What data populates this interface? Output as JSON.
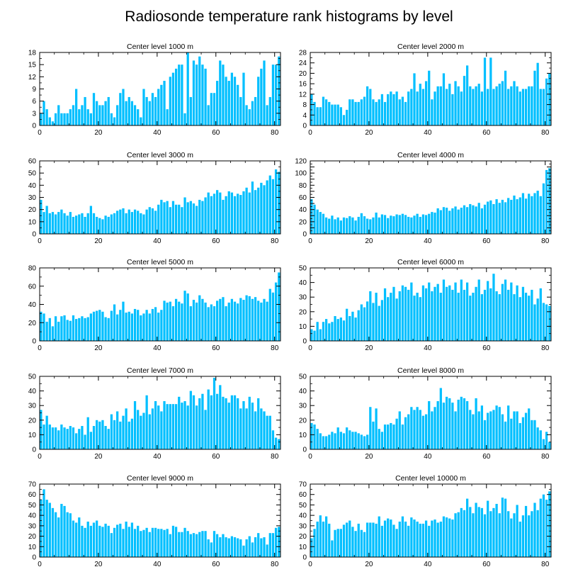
{
  "figure": {
    "title": "Radiosonde temperature rank histograms by level"
  },
  "chart_data": [
    {
      "type": "bar",
      "title": "Center level 1000 m",
      "ylim": [
        0,
        18
      ],
      "yticks": [
        0,
        3,
        6,
        9,
        12,
        15,
        18
      ],
      "xticks": [
        0,
        20,
        40,
        60,
        80
      ],
      "xlim": [
        0,
        82
      ],
      "values": [
        3,
        6,
        4,
        2,
        1,
        3,
        5,
        3,
        3,
        3,
        4,
        5,
        9,
        4,
        5,
        7,
        4,
        3,
        8,
        6,
        5,
        5,
        6,
        7,
        3,
        2,
        5,
        8,
        9,
        6,
        7,
        6,
        5,
        4,
        2,
        9,
        7,
        6,
        8,
        7,
        9,
        10,
        11,
        4,
        12,
        13,
        14,
        15,
        15,
        3,
        18,
        7,
        16,
        15,
        17,
        15,
        14,
        5,
        8,
        8,
        11,
        16,
        15,
        12,
        11,
        13,
        12,
        10,
        7,
        13,
        5,
        4,
        6,
        7,
        12,
        14,
        16,
        5,
        7,
        15,
        15,
        17
      ]
    },
    {
      "type": "bar",
      "title": "Center level 2000 m",
      "ylim": [
        0,
        28
      ],
      "yticks": [
        0,
        4,
        8,
        12,
        16,
        20,
        24,
        28
      ],
      "xticks": [
        0,
        20,
        40,
        60,
        80
      ],
      "xlim": [
        0,
        82
      ],
      "values": [
        12,
        9,
        7,
        7,
        11,
        10,
        9,
        8,
        8,
        8,
        7,
        4,
        6,
        10,
        10,
        9,
        9,
        10,
        11,
        15,
        14,
        10,
        9,
        10,
        12,
        9,
        12,
        13,
        12,
        13,
        10,
        11,
        9,
        13,
        14,
        20,
        13,
        16,
        14,
        17,
        21,
        10,
        13,
        15,
        15,
        20,
        14,
        16,
        12,
        17,
        15,
        13,
        19,
        23,
        15,
        14,
        15,
        16,
        13,
        26,
        14,
        26,
        14,
        15,
        16,
        17,
        21,
        14,
        15,
        17,
        15,
        13,
        14,
        14,
        15,
        15,
        21,
        24,
        14,
        14,
        18,
        20
      ]
    },
    {
      "type": "bar",
      "title": "Center level 3000 m",
      "ylim": [
        0,
        60
      ],
      "yticks": [
        0,
        10,
        20,
        30,
        40,
        50,
        60
      ],
      "xticks": [
        0,
        20,
        40,
        60,
        80
      ],
      "xlim": [
        0,
        82
      ],
      "values": [
        28,
        18,
        23,
        17,
        18,
        16,
        18,
        20,
        17,
        15,
        18,
        14,
        15,
        16,
        17,
        14,
        17,
        23,
        17,
        14,
        13,
        12,
        15,
        14,
        16,
        17,
        19,
        20,
        21,
        17,
        20,
        18,
        20,
        19,
        17,
        16,
        20,
        22,
        21,
        19,
        24,
        28,
        26,
        27,
        22,
        27,
        24,
        24,
        22,
        30,
        26,
        27,
        25,
        23,
        28,
        27,
        30,
        34,
        31,
        33,
        36,
        34,
        28,
        31,
        35,
        34,
        31,
        33,
        32,
        35,
        38,
        34,
        43,
        36,
        38,
        42,
        40,
        44,
        48,
        45,
        53,
        51
      ]
    },
    {
      "type": "bar",
      "title": "Center level 4000 m",
      "ylim": [
        0,
        120
      ],
      "yticks": [
        0,
        10,
        20,
        30,
        40,
        50,
        60,
        70,
        80,
        90,
        100,
        110,
        120
      ],
      "ytick_labels": [
        0,
        "",
        20,
        "",
        40,
        "",
        60,
        "",
        80,
        "",
        100,
        "",
        120
      ],
      "xticks": [
        0,
        20,
        40,
        60,
        80
      ],
      "xlim": [
        0,
        82
      ],
      "values": [
        57,
        48,
        40,
        36,
        33,
        27,
        25,
        30,
        24,
        27,
        22,
        27,
        26,
        29,
        27,
        22,
        28,
        34,
        29,
        25,
        24,
        27,
        35,
        27,
        32,
        31,
        26,
        30,
        29,
        32,
        31,
        33,
        31,
        28,
        27,
        30,
        33,
        28,
        32,
        31,
        33,
        36,
        35,
        42,
        39,
        44,
        43,
        38,
        42,
        45,
        40,
        43,
        47,
        44,
        49,
        47,
        45,
        51,
        42,
        48,
        53,
        55,
        49,
        57,
        51,
        56,
        52,
        59,
        56,
        63,
        57,
        60,
        67,
        58,
        66,
        62,
        67,
        71,
        62,
        83,
        105,
        108
      ]
    },
    {
      "type": "bar",
      "title": "Center level 5000 m",
      "ylim": [
        0,
        80
      ],
      "yticks": [
        0,
        20,
        40,
        60,
        80
      ],
      "yminor": [
        10,
        30,
        50,
        70
      ],
      "xticks": [
        0,
        20,
        40,
        60,
        80
      ],
      "xlim": [
        0,
        82
      ],
      "values": [
        32,
        30,
        21,
        25,
        16,
        27,
        21,
        27,
        28,
        23,
        22,
        28,
        24,
        25,
        27,
        25,
        26,
        30,
        32,
        33,
        34,
        32,
        26,
        25,
        33,
        40,
        29,
        34,
        43,
        31,
        32,
        30,
        35,
        34,
        28,
        30,
        34,
        30,
        35,
        37,
        31,
        34,
        44,
        42,
        43,
        38,
        46,
        43,
        41,
        55,
        52,
        38,
        45,
        42,
        50,
        46,
        42,
        37,
        40,
        38,
        44,
        46,
        48,
        38,
        42,
        46,
        43,
        41,
        47,
        45,
        50,
        49,
        46,
        48,
        44,
        42,
        46,
        43,
        57,
        53,
        64,
        75
      ]
    },
    {
      "type": "bar",
      "title": "Center level 6000 m",
      "ylim": [
        0,
        50
      ],
      "yticks": [
        0,
        10,
        20,
        30,
        40,
        50
      ],
      "xticks": [
        0,
        20,
        40,
        60,
        80
      ],
      "xlim": [
        0,
        82
      ],
      "values": [
        8,
        7,
        13,
        8,
        13,
        15,
        12,
        13,
        17,
        15,
        16,
        14,
        22,
        17,
        20,
        16,
        21,
        25,
        23,
        27,
        34,
        26,
        33,
        24,
        28,
        36,
        30,
        33,
        37,
        29,
        34,
        38,
        37,
        35,
        40,
        31,
        33,
        30,
        38,
        36,
        40,
        34,
        37,
        39,
        33,
        42,
        37,
        38,
        35,
        40,
        33,
        42,
        35,
        40,
        31,
        33,
        37,
        42,
        32,
        35,
        41,
        36,
        46,
        34,
        32,
        39,
        42,
        35,
        40,
        32,
        38,
        30,
        37,
        33,
        31,
        35,
        25,
        29,
        36,
        26,
        25,
        24
      ]
    },
    {
      "type": "bar",
      "title": "Center level 7000 m",
      "ylim": [
        0,
        50
      ],
      "yticks": [
        0,
        10,
        20,
        30,
        40,
        50
      ],
      "xticks": [
        0,
        20,
        40,
        60,
        80
      ],
      "xlim": [
        0,
        82
      ],
      "values": [
        27,
        17,
        23,
        17,
        15,
        15,
        13,
        17,
        15,
        14,
        16,
        15,
        11,
        14,
        16,
        10,
        22,
        12,
        16,
        20,
        19,
        20,
        16,
        14,
        24,
        20,
        26,
        19,
        23,
        28,
        19,
        21,
        33,
        27,
        23,
        25,
        37,
        24,
        28,
        33,
        30,
        26,
        33,
        31,
        31,
        31,
        31,
        36,
        32,
        33,
        30,
        40,
        37,
        30,
        35,
        38,
        27,
        41,
        37,
        49,
        38,
        44,
        36,
        35,
        32,
        37,
        37,
        35,
        28,
        33,
        28,
        36,
        32,
        26,
        35,
        28,
        26,
        23,
        23,
        13,
        8,
        7
      ]
    },
    {
      "type": "bar",
      "title": "Center level 8000 m",
      "ylim": [
        0,
        50
      ],
      "yticks": [
        0,
        10,
        20,
        30,
        40,
        50
      ],
      "xticks": [
        0,
        20,
        40,
        60,
        80
      ],
      "xlim": [
        0,
        82
      ],
      "values": [
        18,
        17,
        14,
        11,
        9,
        9,
        10,
        12,
        11,
        15,
        12,
        11,
        15,
        13,
        12,
        12,
        11,
        10,
        9,
        10,
        29,
        19,
        28,
        14,
        12,
        17,
        17,
        18,
        17,
        21,
        26,
        17,
        22,
        24,
        29,
        27,
        29,
        27,
        23,
        24,
        33,
        26,
        29,
        33,
        42,
        32,
        36,
        35,
        32,
        26,
        34,
        36,
        35,
        33,
        27,
        24,
        35,
        26,
        30,
        20,
        25,
        26,
        27,
        30,
        29,
        24,
        19,
        30,
        21,
        26,
        26,
        18,
        22,
        25,
        28,
        20,
        20,
        15,
        13,
        7,
        12,
        5
      ]
    },
    {
      "type": "bar",
      "title": "Center level 9000 m",
      "ylim": [
        0,
        70
      ],
      "yticks": [
        0,
        10,
        20,
        30,
        40,
        50,
        60,
        70
      ],
      "xticks": [
        0,
        20,
        40,
        60,
        80
      ],
      "xlim": [
        0,
        82
      ],
      "values": [
        55,
        65,
        55,
        52,
        47,
        43,
        38,
        51,
        49,
        43,
        42,
        35,
        33,
        38,
        30,
        28,
        34,
        30,
        33,
        35,
        30,
        29,
        32,
        30,
        23,
        28,
        31,
        32,
        27,
        34,
        29,
        33,
        27,
        30,
        25,
        26,
        28,
        24,
        28,
        28,
        27,
        27,
        26,
        27,
        22,
        30,
        29,
        24,
        24,
        28,
        25,
        22,
        23,
        22,
        24,
        25,
        25,
        17,
        14,
        25,
        22,
        19,
        22,
        19,
        18,
        20,
        19,
        18,
        17,
        11,
        17,
        20,
        14,
        19,
        23,
        18,
        19,
        12,
        23,
        23,
        28,
        29
      ]
    },
    {
      "type": "bar",
      "title": "Center level 10000 m",
      "ylim": [
        0,
        70
      ],
      "yticks": [
        0,
        10,
        20,
        30,
        40,
        50,
        60,
        70
      ],
      "xticks": [
        0,
        20,
        40,
        60,
        80
      ],
      "xlim": [
        0,
        82
      ],
      "values": [
        18,
        27,
        34,
        40,
        34,
        39,
        32,
        16,
        26,
        27,
        27,
        31,
        33,
        35,
        29,
        25,
        32,
        26,
        24,
        33,
        33,
        33,
        32,
        39,
        30,
        35,
        37,
        36,
        31,
        27,
        34,
        39,
        34,
        30,
        38,
        36,
        34,
        32,
        32,
        35,
        30,
        35,
        36,
        33,
        34,
        39,
        38,
        37,
        36,
        42,
        43,
        47,
        45,
        56,
        48,
        42,
        52,
        48,
        47,
        41,
        54,
        44,
        47,
        51,
        42,
        57,
        56,
        44,
        37,
        42,
        50,
        34,
        40,
        49,
        40,
        44,
        52,
        45,
        56,
        60,
        55,
        63
      ]
    }
  ]
}
